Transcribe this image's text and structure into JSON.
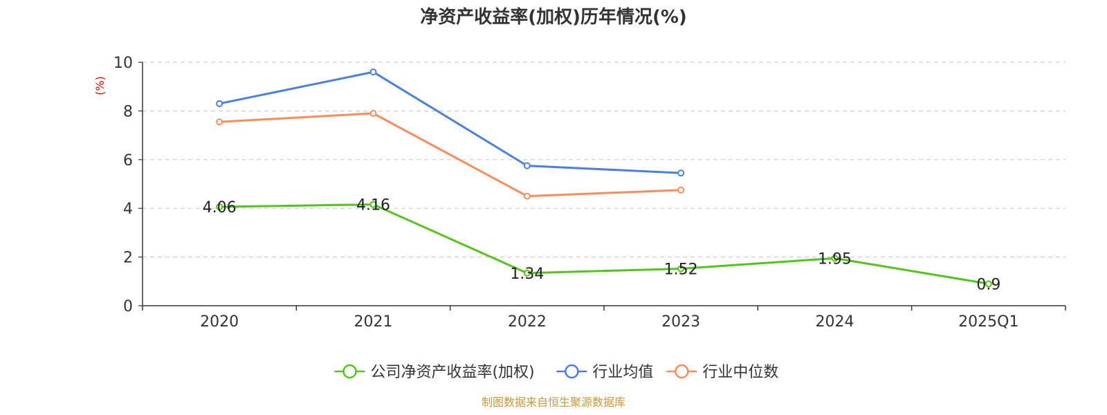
{
  "chart_data": {
    "type": "line",
    "title": "净资产收益率(加权)历年情况(%)",
    "ylabel": "(%)",
    "xlabel": "",
    "ylim": [
      0,
      10
    ],
    "yticks": [
      0,
      2,
      4,
      6,
      8,
      10
    ],
    "grid": true,
    "legend_position": "bottom",
    "categories": [
      "2020",
      "2021",
      "2022",
      "2023",
      "2024",
      "2025Q1"
    ],
    "series": [
      {
        "name": "公司净资产收益率(加权)",
        "color": "#52c41a",
        "values": [
          4.06,
          4.16,
          1.34,
          1.52,
          1.95,
          0.9
        ],
        "labels": [
          "4.06",
          "4.16",
          "1.34",
          "1.52",
          "1.95",
          "0.9"
        ]
      },
      {
        "name": "行业均值",
        "color": "#4a7fe0",
        "values": [
          8.3,
          9.6,
          5.75,
          5.45,
          null,
          null
        ]
      },
      {
        "name": "行业中位数",
        "color": "#fa8c5a",
        "values": [
          7.55,
          7.9,
          4.5,
          4.75,
          null,
          null
        ]
      }
    ]
  },
  "footer": {
    "source": "制图数据来自恒生聚源数据库"
  },
  "colors": {
    "grid": "#cccccc",
    "axis": "#333333",
    "ylabel": "#ff0000",
    "source": "#c8973a"
  }
}
